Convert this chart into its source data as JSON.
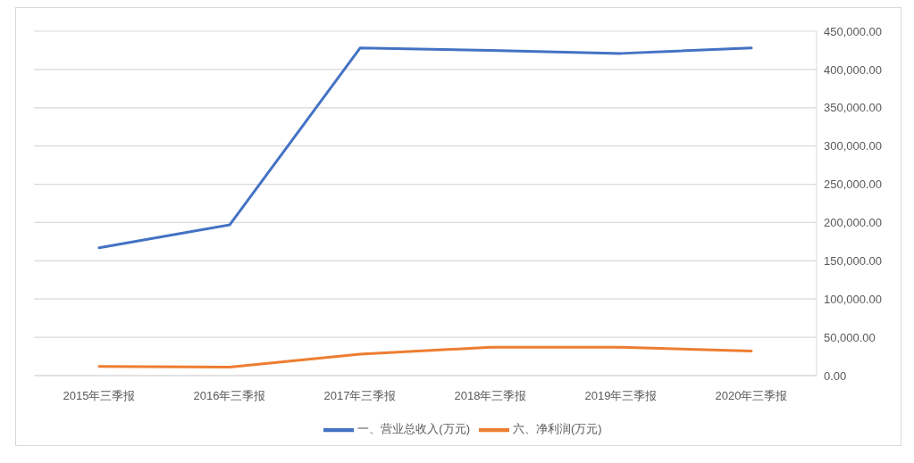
{
  "chart_data": {
    "type": "line",
    "categories": [
      "2015年三季报",
      "2016年三季报",
      "2017年三季报",
      "2018年三季报",
      "2019年三季报",
      "2020年三季报"
    ],
    "series": [
      {
        "name": "一、营业总收入(万元)",
        "color": "#4472c4",
        "values": [
          167000,
          197000,
          428000,
          425000,
          421000,
          428000
        ]
      },
      {
        "name": "六、净利润(万元)",
        "color": "#ed7d31",
        "values": [
          12000,
          11000,
          28000,
          37000,
          37000,
          32000
        ]
      }
    ],
    "ylim": [
      0,
      450000
    ],
    "yticks": [
      {
        "value": 0,
        "label": "0.00"
      },
      {
        "value": 50000,
        "label": "50,000.00"
      },
      {
        "value": 100000,
        "label": "100,000.00"
      },
      {
        "value": 150000,
        "label": "150,000.00"
      },
      {
        "value": 200000,
        "label": "200,000.00"
      },
      {
        "value": 250000,
        "label": "250,000.00"
      },
      {
        "value": 300000,
        "label": "300,000.00"
      },
      {
        "value": 350000,
        "label": "350,000.00"
      },
      {
        "value": 400000,
        "label": "400,000.00"
      },
      {
        "value": 450000,
        "label": "450,000.00"
      }
    ],
    "grid": "y",
    "legend": "bottom"
  }
}
